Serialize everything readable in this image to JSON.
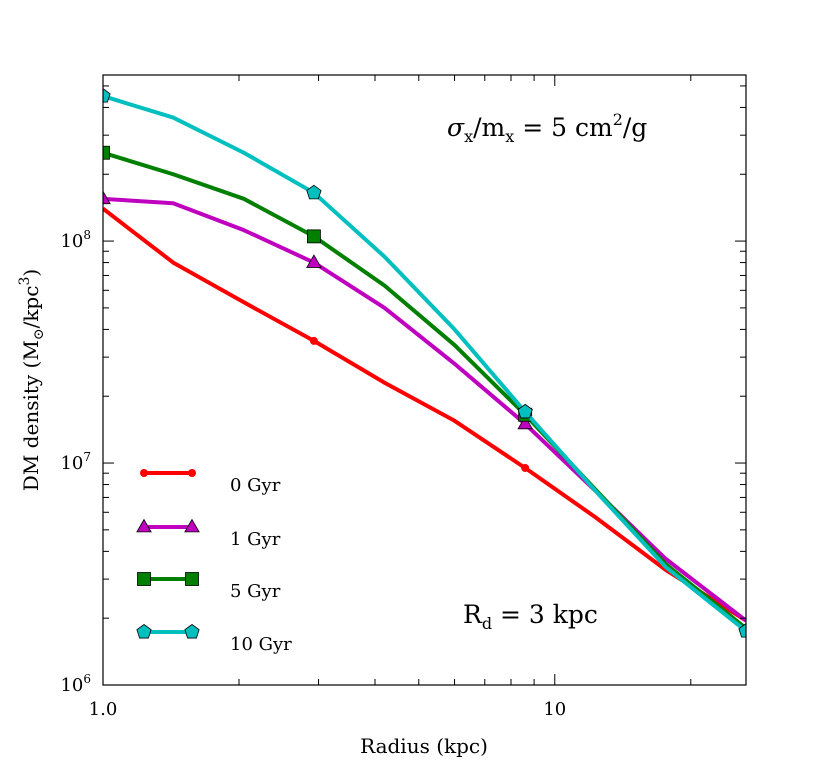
{
  "chart_data": {
    "type": "line",
    "title": "",
    "xlabel": "Radius (kpc)",
    "ylabel_main": "DM density (M",
    "ylabel_sub": "⊙",
    "ylabel_mid": "/kpc",
    "ylabel_sup": "3",
    "ylabel_end": ")",
    "xscale": "log",
    "yscale": "log",
    "xlim": [
      1.0,
      26.5
    ],
    "ylim": [
      1000000,
      560000000
    ],
    "xticks": [
      {
        "value": 1.0,
        "label": "1.0"
      },
      {
        "value": 10,
        "label": "10"
      }
    ],
    "yticks": [
      {
        "value": 1000000,
        "base": "10",
        "exp": "6"
      },
      {
        "value": 10000000,
        "base": "10",
        "exp": "7"
      },
      {
        "value": 100000000,
        "base": "10",
        "exp": "8"
      }
    ],
    "annotations": {
      "cross_section": {
        "sigma": "σ",
        "x1": "x",
        "slash": "/m",
        "x2": "x",
        "eq": " = 5 cm",
        "sup": "2",
        "end": "/g"
      },
      "disk_scale": {
        "r": "R",
        "d": "d",
        "eq": " = 3 kpc"
      }
    },
    "legend_position": "lower-left",
    "series": [
      {
        "name": "0 Gyr",
        "color": "#ff0000",
        "marker": "dot",
        "x": [
          1.0,
          1.43,
          2.05,
          2.93,
          4.2,
          6.0,
          8.6,
          12.3,
          17.6,
          26.5
        ],
        "y": [
          140000000,
          80000000,
          53000000,
          35500000,
          23000000,
          15500000,
          9500000,
          5700000,
          3300000,
          1950000
        ],
        "marker_idx": [
          3,
          6
        ]
      },
      {
        "name": "1 Gyr",
        "color": "#bf00bf",
        "marker": "triangle",
        "x": [
          1.0,
          1.43,
          2.05,
          2.93,
          4.2,
          6.0,
          8.6,
          12.3,
          17.6,
          26.5
        ],
        "y": [
          155000000,
          148000000,
          112000000,
          80000000,
          50000000,
          28000000,
          15000000,
          7500000,
          3700000,
          1950000
        ],
        "marker_idx": [
          0,
          3,
          6
        ]
      },
      {
        "name": "5 Gyr",
        "color": "#007f00",
        "marker": "square",
        "x": [
          1.0,
          1.43,
          2.05,
          2.93,
          4.2,
          6.0,
          8.6,
          12.3,
          17.6,
          26.5
        ],
        "y": [
          250000000,
          200000000,
          155000000,
          105000000,
          63000000,
          34000000,
          16500000,
          7600000,
          3500000,
          1800000
        ],
        "marker_idx": [
          0,
          3,
          6
        ]
      },
      {
        "name": "10 Gyr",
        "color": "#00bfbf",
        "marker": "pentagon",
        "x": [
          1.0,
          1.43,
          2.05,
          2.93,
          4.2,
          6.0,
          8.6,
          12.3,
          17.6,
          26.5
        ],
        "y": [
          450000000,
          360000000,
          250000000,
          165000000,
          85000000,
          40000000,
          17000000,
          7500000,
          3400000,
          1750000
        ],
        "marker_idx": [
          0,
          3,
          6,
          9
        ]
      }
    ]
  }
}
